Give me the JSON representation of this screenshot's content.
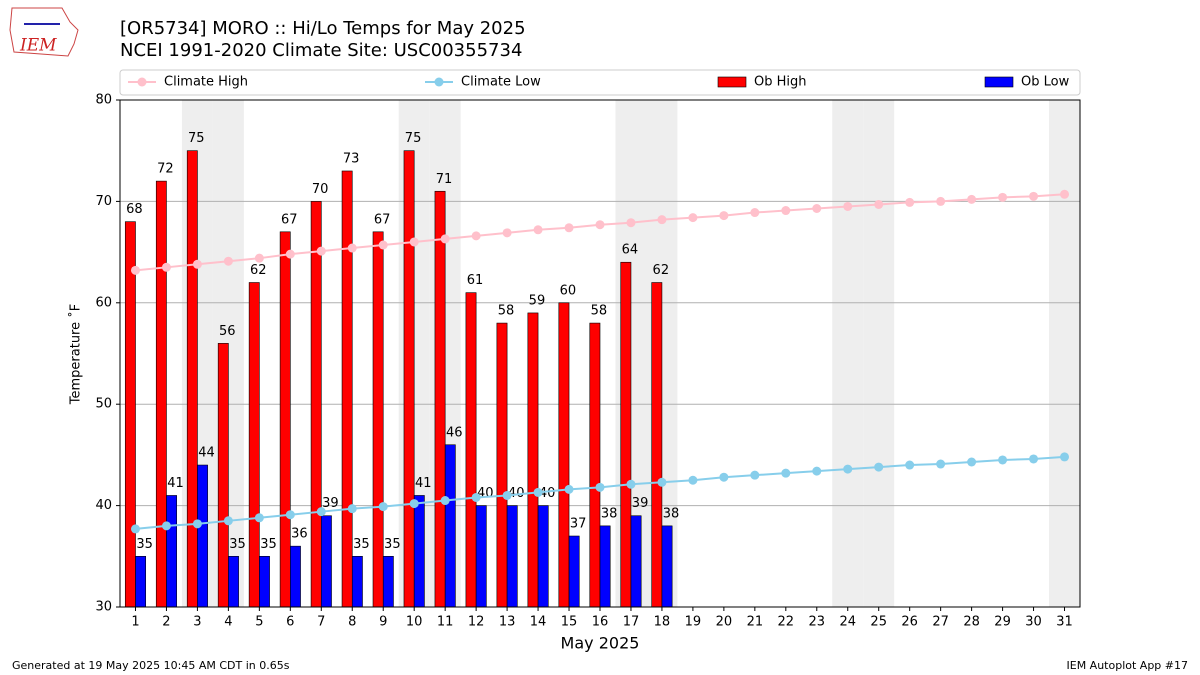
{
  "logo_text": "IEM",
  "footer_left": "Generated at 19 May 2025 10:45 AM CDT in 0.65s",
  "footer_right": "IEM Autoplot App #17",
  "chart_data": {
    "type": "bar",
    "title": "[OR5734] MORO :: Hi/Lo Temps for May 2025",
    "subtitle": "NCEI 1991-2020 Climate Site: USC00355734",
    "x_label": "May 2025",
    "y_label": "Temperature ˚F",
    "categories": [
      "1",
      "2",
      "3",
      "4",
      "5",
      "6",
      "7",
      "8",
      "9",
      "10",
      "11",
      "12",
      "13",
      "14",
      "15",
      "16",
      "17",
      "18",
      "19",
      "20",
      "21",
      "22",
      "23",
      "24",
      "25",
      "26",
      "27",
      "28",
      "29",
      "30",
      "31"
    ],
    "shaded": [
      "3",
      "4",
      "10",
      "11",
      "17",
      "18",
      "24",
      "25",
      "31"
    ],
    "shade_color": "#eeeeee",
    "ylim": [
      30,
      80
    ],
    "yticks": [
      30,
      40,
      50,
      60,
      70,
      80
    ],
    "grid": true,
    "series": [
      {
        "name": "Climate High",
        "type": "line",
        "color": "#ffc0cb",
        "values": [
          63.2,
          63.5,
          63.8,
          64.1,
          64.4,
          64.8,
          65.1,
          65.4,
          65.7,
          66.0,
          66.3,
          66.6,
          66.9,
          67.2,
          67.4,
          67.7,
          67.9,
          68.2,
          68.4,
          68.6,
          68.9,
          69.1,
          69.3,
          69.5,
          69.7,
          69.9,
          70.0,
          70.2,
          70.4,
          70.5,
          70.7
        ]
      },
      {
        "name": "Climate Low",
        "type": "line",
        "color": "#87ceeb",
        "values": [
          37.7,
          38.0,
          38.2,
          38.5,
          38.8,
          39.1,
          39.4,
          39.7,
          39.9,
          40.2,
          40.5,
          40.8,
          41.0,
          41.3,
          41.6,
          41.8,
          42.1,
          42.3,
          42.5,
          42.8,
          43.0,
          43.2,
          43.4,
          43.6,
          43.8,
          44.0,
          44.1,
          44.3,
          44.5,
          44.6,
          44.8
        ]
      },
      {
        "name": "Ob High",
        "type": "bar",
        "color": "#ff0000",
        "values": [
          68,
          72,
          75,
          56,
          62,
          67,
          70,
          73,
          67,
          75,
          71,
          61,
          58,
          59,
          60,
          58,
          64,
          62,
          null,
          null,
          null,
          null,
          null,
          null,
          null,
          null,
          null,
          null,
          null,
          null,
          null
        ]
      },
      {
        "name": "Ob Low",
        "type": "bar",
        "color": "#0000ff",
        "values": [
          35,
          41,
          44,
          35,
          35,
          36,
          39,
          35,
          35,
          41,
          46,
          40,
          40,
          40,
          37,
          38,
          39,
          38,
          null,
          null,
          null,
          null,
          null,
          null,
          null,
          null,
          null,
          null,
          null,
          null,
          null
        ]
      }
    ]
  }
}
